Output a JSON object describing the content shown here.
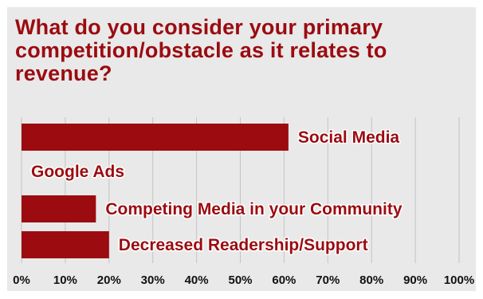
{
  "chart_data": {
    "type": "bar",
    "orientation": "horizontal",
    "title": "What do you consider your primary competition/obstacle as it relates to revenue?",
    "categories": [
      "Social Media",
      "Google Ads",
      "Competing Media in your Community",
      "Decreased Readership/Support"
    ],
    "values": [
      61,
      0,
      17,
      20
    ],
    "xlim": [
      0,
      100
    ],
    "x_ticks": [
      "0%",
      "10%",
      "20%",
      "30%",
      "40%",
      "50%",
      "60%",
      "70%",
      "80%",
      "90%",
      "100%"
    ],
    "grid": true,
    "legend": "none",
    "colors": {
      "bar": "#9b0b10",
      "text": "#9b0b10",
      "grid": "#c4c4c4",
      "background": "#e9e9e9"
    }
  }
}
